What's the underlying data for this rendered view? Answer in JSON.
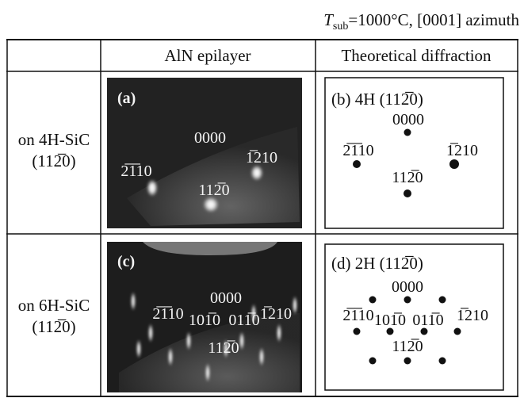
{
  "header": {
    "title": {
      "symbol": "T",
      "subscript": "sub",
      "rest": "=1000°C, [0001] azimuth"
    }
  },
  "table": {
    "columns": [
      "AlN epilayer",
      "Theoretical diffraction"
    ],
    "rows": [
      {
        "substrate": [
          "on 4H-SiC",
          "(112̅0)"
        ],
        "image": {
          "label": "(a)",
          "spots": [
            "0000",
            "2̅1̅10",
            "1̅210",
            "112̅0"
          ]
        },
        "diagram": {
          "label": "(b) 4H (112̅0)",
          "spots": [
            "0000",
            "2̅1̅10",
            "1̅210",
            "112̅0"
          ]
        }
      },
      {
        "substrate": [
          "on 6H-SiC",
          "(112̅0)"
        ],
        "image": {
          "label": "(c)",
          "spots": [
            "0000",
            "2̅1̅10",
            "101̅0",
            "011̅0",
            "1̅210",
            "112̅0"
          ]
        },
        "diagram": {
          "label": "(d) 2H (112̅0)",
          "spots": [
            "0000",
            "2̅1̅10",
            "101̅0",
            "011̅0",
            "1̅210",
            "112̅0"
          ]
        }
      }
    ]
  }
}
